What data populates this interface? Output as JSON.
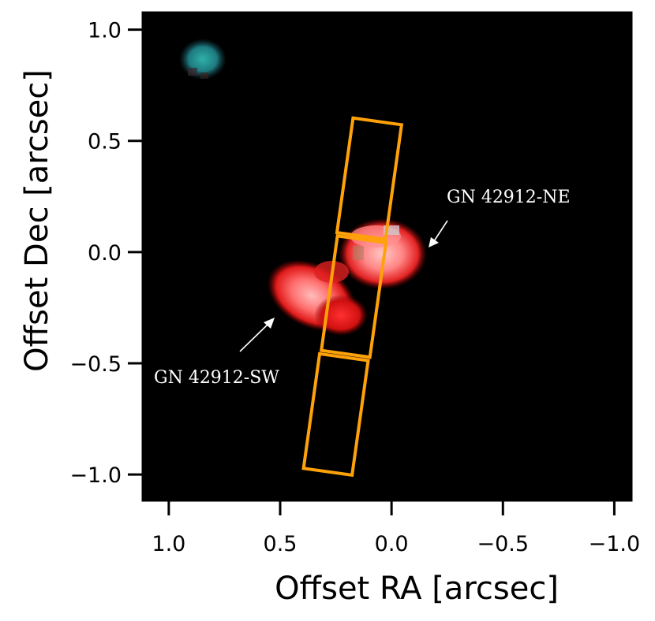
{
  "axes": {
    "xlabel": "Offset RA [arcsec]",
    "ylabel": "Offset Dec [arcsec]",
    "x_ticks": [
      {
        "value": 1.0,
        "label": "1.0"
      },
      {
        "value": 0.5,
        "label": "0.5"
      },
      {
        "value": 0.0,
        "label": "0.0"
      },
      {
        "value": -0.5,
        "label": "−0.5"
      },
      {
        "value": -1.0,
        "label": "−1.0"
      }
    ],
    "y_ticks": [
      {
        "value": 1.0,
        "label": "1.0"
      },
      {
        "value": 0.5,
        "label": "0.5"
      },
      {
        "value": 0.0,
        "label": "0.0"
      },
      {
        "value": -0.5,
        "label": "−0.5"
      },
      {
        "value": -1.0,
        "label": "−1.0"
      }
    ],
    "xlim": [
      1.12,
      -1.08
    ],
    "ylim": [
      -1.12,
      1.08
    ]
  },
  "colors": {
    "background": "#000000",
    "slit": "#ffa20a",
    "annotation": "#ffffff"
  },
  "annotations": [
    {
      "text": "GN 42912-NE",
      "arrow_tip": [
        -0.18,
        0.02
      ]
    },
    {
      "text": "GN 42912-SW",
      "arrow_tip": [
        0.53,
        -0.3
      ]
    }
  ],
  "slits": [
    {
      "center": [
        0.1,
        0.33
      ],
      "width": 0.22,
      "height": 0.52,
      "angle_deg": 8
    },
    {
      "center": [
        0.17,
        -0.2
      ],
      "width": 0.22,
      "height": 0.52,
      "angle_deg": 8
    },
    {
      "center": [
        0.25,
        -0.73
      ],
      "width": 0.22,
      "height": 0.52,
      "angle_deg": 8
    }
  ]
}
